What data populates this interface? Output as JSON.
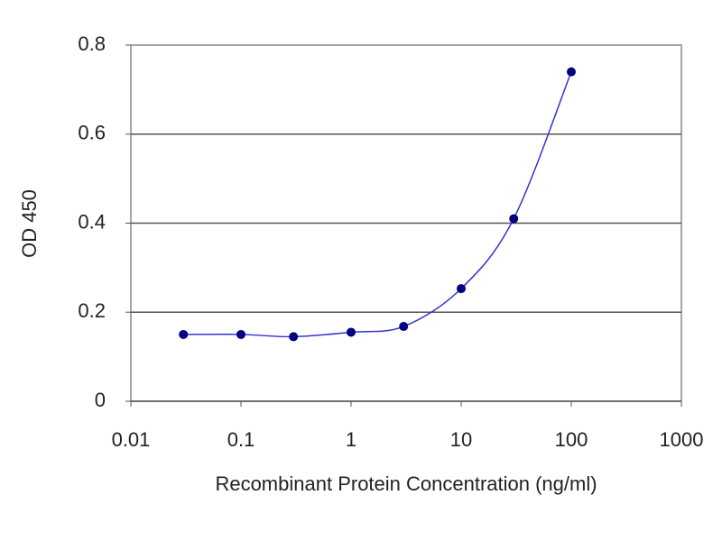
{
  "chart_data": {
    "type": "scatter",
    "x_label": "Recombinant Protein Concentration (ng/ml)",
    "y_label": "OD 450",
    "x": [
      0.03,
      0.1,
      0.3,
      1,
      3,
      10,
      30,
      100
    ],
    "values": [
      0.15,
      0.15,
      0.145,
      0.155,
      0.168,
      0.253,
      0.41,
      0.74
    ],
    "marker_color": "#000080",
    "line_color": "#3333cc",
    "xscale": "log",
    "xlim": [
      0.01,
      1000
    ],
    "xticks": [
      0.01,
      0.1,
      1,
      10,
      100,
      1000
    ],
    "ylim": [
      0,
      0.8
    ],
    "yticks": [
      0,
      0.2,
      0.4,
      0.6,
      0.8
    ],
    "grid": true
  }
}
